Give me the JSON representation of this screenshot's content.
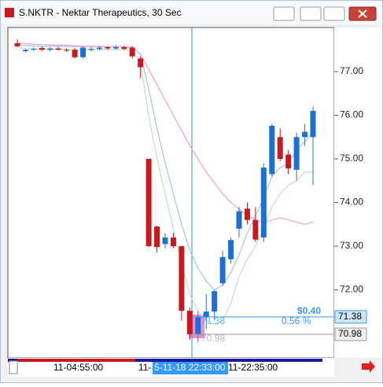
{
  "window": {
    "title": "S.NKTR - Nektar Therapeutics, 30 Sec"
  },
  "chart_data": {
    "type": "candlestick",
    "open": [
      77.65,
      77.47,
      77.5,
      77.54,
      77.5,
      77.53,
      77.5,
      77.5,
      77.33,
      77.5,
      77.52,
      77.56,
      77.53,
      77.56,
      77.55,
      77.3,
      75.0,
      73.45,
      73.05,
      73.2,
      73.0,
      71.52,
      70.98,
      71.38,
      71.5,
      72.15,
      72.7,
      73.4,
      73.86,
      73.6,
      73.2,
      74.65,
      75.5,
      75.1,
      74.75,
      75.5,
      75.5
    ],
    "high": [
      77.74,
      77.52,
      77.55,
      77.58,
      77.56,
      77.56,
      77.54,
      77.54,
      77.58,
      77.56,
      77.58,
      77.58,
      77.6,
      77.59,
      77.58,
      77.35,
      75.0,
      73.47,
      73.3,
      73.3,
      73.0,
      71.6,
      71.5,
      71.9,
      72.0,
      72.9,
      73.2,
      73.9,
      74.0,
      73.9,
      74.9,
      75.8,
      75.7,
      75.2,
      75.6,
      75.8,
      76.2
    ],
    "low": [
      77.56,
      77.44,
      77.47,
      77.47,
      77.46,
      77.48,
      77.45,
      77.3,
      77.3,
      77.46,
      77.48,
      77.5,
      77.5,
      77.5,
      77.3,
      76.85,
      72.98,
      72.85,
      72.95,
      72.95,
      71.3,
      70.85,
      70.8,
      71.1,
      71.3,
      72.1,
      72.6,
      73.2,
      73.5,
      73.1,
      73.1,
      74.6,
      74.95,
      74.65,
      74.5,
      75.3,
      74.4
    ],
    "close": [
      77.58,
      77.5,
      77.52,
      77.5,
      77.53,
      77.5,
      77.48,
      77.33,
      77.55,
      77.52,
      77.55,
      77.53,
      77.56,
      77.52,
      77.35,
      77.1,
      73.0,
      72.98,
      73.2,
      73.0,
      71.52,
      70.98,
      71.38,
      71.5,
      71.97,
      72.75,
      73.14,
      73.8,
      73.6,
      73.15,
      74.8,
      75.76,
      75.0,
      74.78,
      75.5,
      75.62,
      76.1
    ],
    "up_color": "#1f6fd1",
    "down_color": "#c8191e",
    "series": [
      {
        "color": "#a8c8ea",
        "values": [
          77.62,
          77.6,
          77.59,
          77.58,
          77.58,
          77.58,
          77.58,
          77.57,
          77.57,
          77.57,
          77.57,
          77.57,
          77.57,
          77.57,
          77.56,
          77.4,
          76.6,
          75.7,
          74.9,
          74.2,
          73.5,
          72.9,
          72.5,
          72.2,
          72.0,
          72.1,
          72.4,
          72.8,
          73.3,
          73.7,
          74.1,
          74.6,
          74.8,
          74.9,
          75.2,
          75.4,
          75.6
        ]
      },
      {
        "color": "#c4e0c4",
        "values": [
          77.55,
          77.53,
          77.52,
          77.51,
          77.51,
          77.51,
          77.5,
          77.5,
          77.5,
          77.5,
          77.5,
          77.5,
          77.5,
          77.5,
          77.48,
          77.2,
          76.0,
          75.0,
          74.2,
          73.4,
          72.6,
          71.9,
          71.5,
          71.3,
          71.2,
          71.3,
          71.7,
          72.3,
          72.7,
          73.0,
          73.4,
          73.9,
          74.2,
          74.4,
          74.5,
          74.7,
          74.7
        ]
      },
      {
        "color": "#f2a6c8",
        "values": [
          77.66,
          77.64,
          77.63,
          77.62,
          77.61,
          77.6,
          77.6,
          77.59,
          77.58,
          77.58,
          77.58,
          77.57,
          77.57,
          77.57,
          77.56,
          77.4,
          77.05,
          76.7,
          76.35,
          76.0,
          75.65,
          75.3,
          75.0,
          74.7,
          74.45,
          74.2,
          74.0,
          73.85,
          73.7,
          73.6,
          73.55,
          73.6,
          73.65,
          73.6,
          73.55,
          73.5,
          73.55
        ]
      }
    ],
    "ylim": [
      70.44,
      78.01
    ],
    "yticks": [
      {
        "value": 72,
        "label": "72.00"
      },
      {
        "value": 73,
        "label": "73.00"
      },
      {
        "value": 74,
        "label": "74.00"
      },
      {
        "value": 75,
        "label": "75.00"
      },
      {
        "value": 76,
        "label": "76.00"
      },
      {
        "value": 77,
        "label": "77.00"
      }
    ],
    "x_labels": [
      "11-04:55:00",
      "11-",
      "5-11-18 22:33:00",
      "11-22:35:00"
    ],
    "price_labels": [
      {
        "value": 71.38,
        "label": "71.38",
        "color": "#3399ff"
      },
      {
        "value": 70.98,
        "label": "70.98",
        "color": "#999999"
      }
    ],
    "change_label": "$0.40",
    "change_pct_label": "0.56 %"
  }
}
